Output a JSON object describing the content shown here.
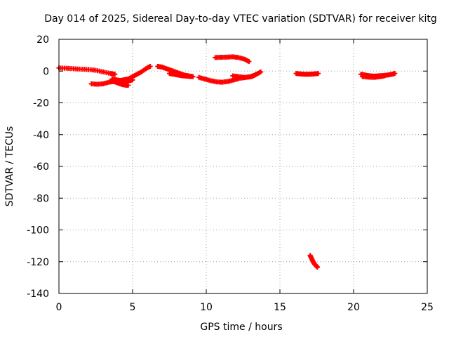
{
  "chart_data": {
    "type": "scatter",
    "title": "Day 014 of 2025, Sidereal Day-to-day VTEC variation (SDTVAR) for receiver kitg",
    "xlabel": "GPS time / hours",
    "ylabel": "SDTVAR / TECUs",
    "xlim": [
      0,
      25
    ],
    "ylim": [
      -140,
      20
    ],
    "x_ticks": [
      0,
      5,
      10,
      15,
      20,
      25
    ],
    "y_ticks": [
      20,
      0,
      -20,
      -40,
      -60,
      -80,
      -100,
      -120,
      -140
    ],
    "grid": true,
    "marker": "plus",
    "colors": {
      "series": "#ff0000",
      "grid": "#a0a0a0",
      "axes": "#000000"
    },
    "series_segments": [
      {
        "x": [
          0.0,
          0.5,
          1.0,
          1.5,
          2.0,
          2.5,
          3.0,
          3.5,
          3.8
        ],
        "y": [
          2,
          1.8,
          1.5,
          1.2,
          1,
          0.5,
          -0.5,
          -1.5,
          -2
        ]
      },
      {
        "x": [
          2.2,
          2.6,
          3.0,
          3.4,
          3.8,
          4.1,
          4.4,
          4.7
        ],
        "y": [
          -8,
          -8.3,
          -8,
          -7,
          -6.5,
          -6,
          -5.5,
          -5
        ]
      },
      {
        "x": [
          3.6,
          3.9,
          4.2,
          4.5,
          4.8,
          5.0
        ],
        "y": [
          -5,
          -5.5,
          -6,
          -6.5,
          -6,
          -5.5
        ]
      },
      {
        "x": [
          3.7,
          4.0,
          4.3,
          4.5,
          4.7
        ],
        "y": [
          -6.5,
          -7.5,
          -8.5,
          -8.8,
          -9
        ]
      },
      {
        "x": [
          4.7,
          5.0,
          5.3,
          5.6,
          5.9,
          6.2
        ],
        "y": [
          -5,
          -3.5,
          -2,
          -0.5,
          1.5,
          3
        ]
      },
      {
        "x": [
          6.7,
          7.0,
          7.3,
          7.6,
          7.9,
          8.2,
          8.5,
          8.8,
          9.1
        ],
        "y": [
          3,
          2.5,
          1.5,
          0.5,
          -0.5,
          -1.5,
          -2.5,
          -3,
          -3.5
        ]
      },
      {
        "x": [
          7.5,
          7.8,
          8.1,
          8.4,
          8.7,
          9.0
        ],
        "y": [
          -1.5,
          -2,
          -2.5,
          -3,
          -3.2,
          -3.5
        ]
      },
      {
        "x": [
          9.5,
          9.9,
          10.3,
          10.7,
          11.1,
          11.5,
          11.9,
          12.3,
          12.7,
          13.1,
          13.4,
          13.7
        ],
        "y": [
          -4,
          -5,
          -6,
          -6.8,
          -7,
          -6.5,
          -5.5,
          -4.5,
          -4,
          -3.5,
          -2,
          -0.5
        ]
      },
      {
        "x": [
          11.8,
          12.2,
          12.6,
          13.0,
          13.4
        ],
        "y": [
          -3,
          -3.5,
          -4,
          -3.5,
          -2
        ]
      },
      {
        "x": [
          10.6,
          11.0,
          11.4,
          11.8,
          12.2,
          12.6,
          12.9
        ],
        "y": [
          8.5,
          8.7,
          8.8,
          9,
          8.5,
          7.5,
          6
        ]
      },
      {
        "x": [
          16.1,
          16.4,
          16.7,
          17.0,
          17.3,
          17.6
        ],
        "y": [
          -1.5,
          -1.8,
          -2,
          -2,
          -1.8,
          -1.5
        ]
      },
      {
        "x": [
          17.05,
          17.15,
          17.25,
          17.35,
          17.45,
          17.55
        ],
        "y": [
          -116,
          -118,
          -120,
          -121.5,
          -122.5,
          -123.5
        ]
      },
      {
        "x": [
          20.5,
          20.8,
          21.1,
          21.4,
          21.7,
          22.0,
          22.3,
          22.6,
          22.8
        ],
        "y": [
          -2,
          -2.5,
          -3,
          -3.2,
          -3,
          -2.8,
          -2.5,
          -2,
          -1.5
        ]
      },
      {
        "x": [
          20.6,
          21.0,
          21.4,
          21.8,
          22.1
        ],
        "y": [
          -3.5,
          -3.8,
          -4,
          -3.5,
          -3
        ]
      }
    ]
  }
}
